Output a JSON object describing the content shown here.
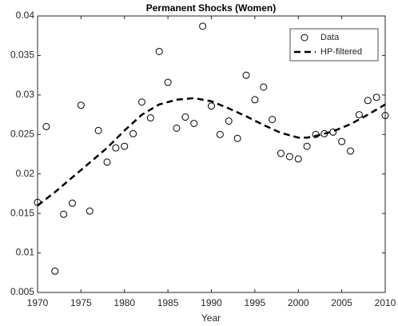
{
  "chart_data": {
    "type": "scatter",
    "title": "Permanent Shocks (Women)",
    "xlabel": "Year",
    "xlim": [
      1970,
      2010
    ],
    "xticks": [
      1970,
      1975,
      1980,
      1985,
      1990,
      1995,
      2000,
      2005,
      2010
    ],
    "ylim": [
      0.005,
      0.04
    ],
    "yticks": [
      0.005,
      0.01,
      0.015,
      0.02,
      0.025,
      0.03,
      0.035,
      0.04
    ],
    "legend": "upper right",
    "series": [
      {
        "name": "Data",
        "type": "scatter",
        "color": "#000000",
        "x": [
          1970,
          1971,
          1972,
          1973,
          1974,
          1975,
          1976,
          1977,
          1978,
          1979,
          1980,
          1981,
          1982,
          1983,
          1984,
          1985,
          1986,
          1987,
          1988,
          1989,
          1990,
          1991,
          1992,
          1993,
          1994,
          1995,
          1996,
          1997,
          1998,
          1999,
          2000,
          2001,
          2002,
          2003,
          2004,
          2005,
          2006,
          2007,
          2008,
          2009,
          2010
        ],
        "values": [
          0.0164,
          0.026,
          0.0077,
          0.0149,
          0.0163,
          0.0287,
          0.0153,
          0.0255,
          0.0215,
          0.0233,
          0.0235,
          0.0251,
          0.0291,
          0.0271,
          0.0355,
          0.0316,
          0.0258,
          0.0272,
          0.0264,
          0.0387,
          0.0286,
          0.025,
          0.0267,
          0.0245,
          0.0325,
          0.0294,
          0.031,
          0.0269,
          0.0226,
          0.0222,
          0.0219,
          0.0235,
          0.025,
          0.0251,
          0.0253,
          0.0241,
          0.0229,
          0.0275,
          0.0293,
          0.0297,
          0.0274
        ]
      },
      {
        "name": "HP-filtered",
        "type": "line",
        "color": "#000000",
        "dashed": true,
        "x": [
          1970,
          1972,
          1975,
          1978,
          1980,
          1982,
          1984,
          1986,
          1988,
          1990,
          1992,
          1994,
          1996,
          1998,
          2000,
          2001,
          2002,
          2004,
          2006,
          2008,
          2010
        ],
        "values": [
          0.016,
          0.0177,
          0.0205,
          0.0233,
          0.0255,
          0.0275,
          0.0288,
          0.0294,
          0.0296,
          0.0292,
          0.0283,
          0.0273,
          0.0262,
          0.0252,
          0.0246,
          0.0246,
          0.0248,
          0.0254,
          0.0263,
          0.0275,
          0.0288
        ]
      }
    ]
  }
}
